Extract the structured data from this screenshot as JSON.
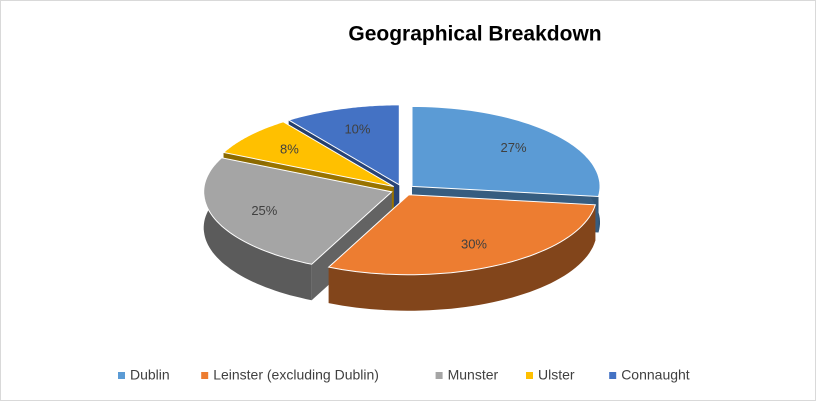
{
  "chart_data": {
    "type": "pie3d",
    "title": "Geographical Breakdown",
    "categories": [
      "Dublin",
      "Leinster (excluding Dublin)",
      "Munster",
      "Ulster",
      "Connaught"
    ],
    "values": [
      27,
      30,
      25,
      8,
      10
    ],
    "value_labels": [
      "27%",
      "30%",
      "25%",
      "8%",
      "10%"
    ],
    "colors": [
      "#5b9bd5",
      "#ed7d31",
      "#a5a5a5",
      "#ffc000",
      "#4472c4"
    ],
    "legend": "bottom"
  }
}
